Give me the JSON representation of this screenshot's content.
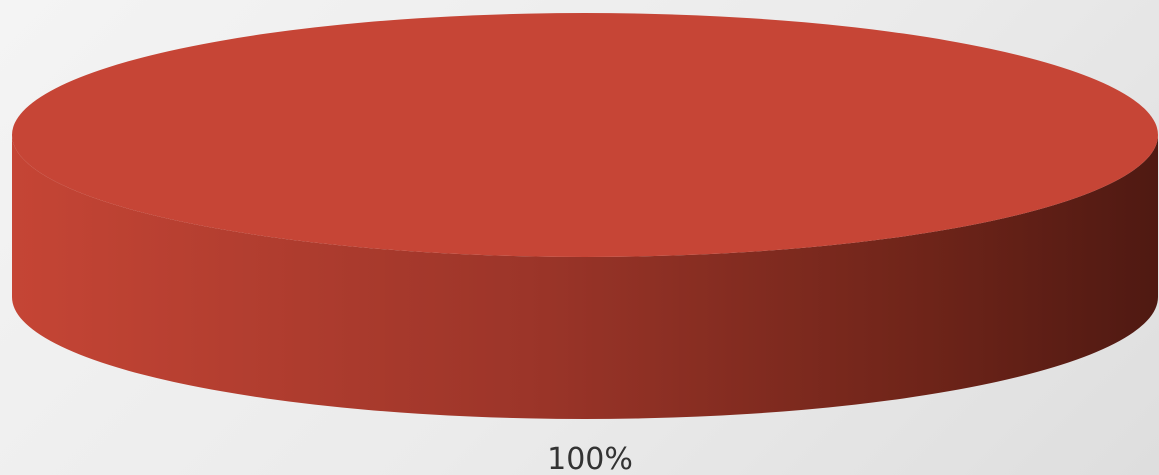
{
  "chart_data": {
    "type": "pie",
    "style": "3d",
    "slices": [
      {
        "value": 100,
        "label": "100%",
        "color": "#c64536"
      }
    ],
    "data_labels": [
      "100%"
    ],
    "title": "",
    "legend": "none"
  }
}
